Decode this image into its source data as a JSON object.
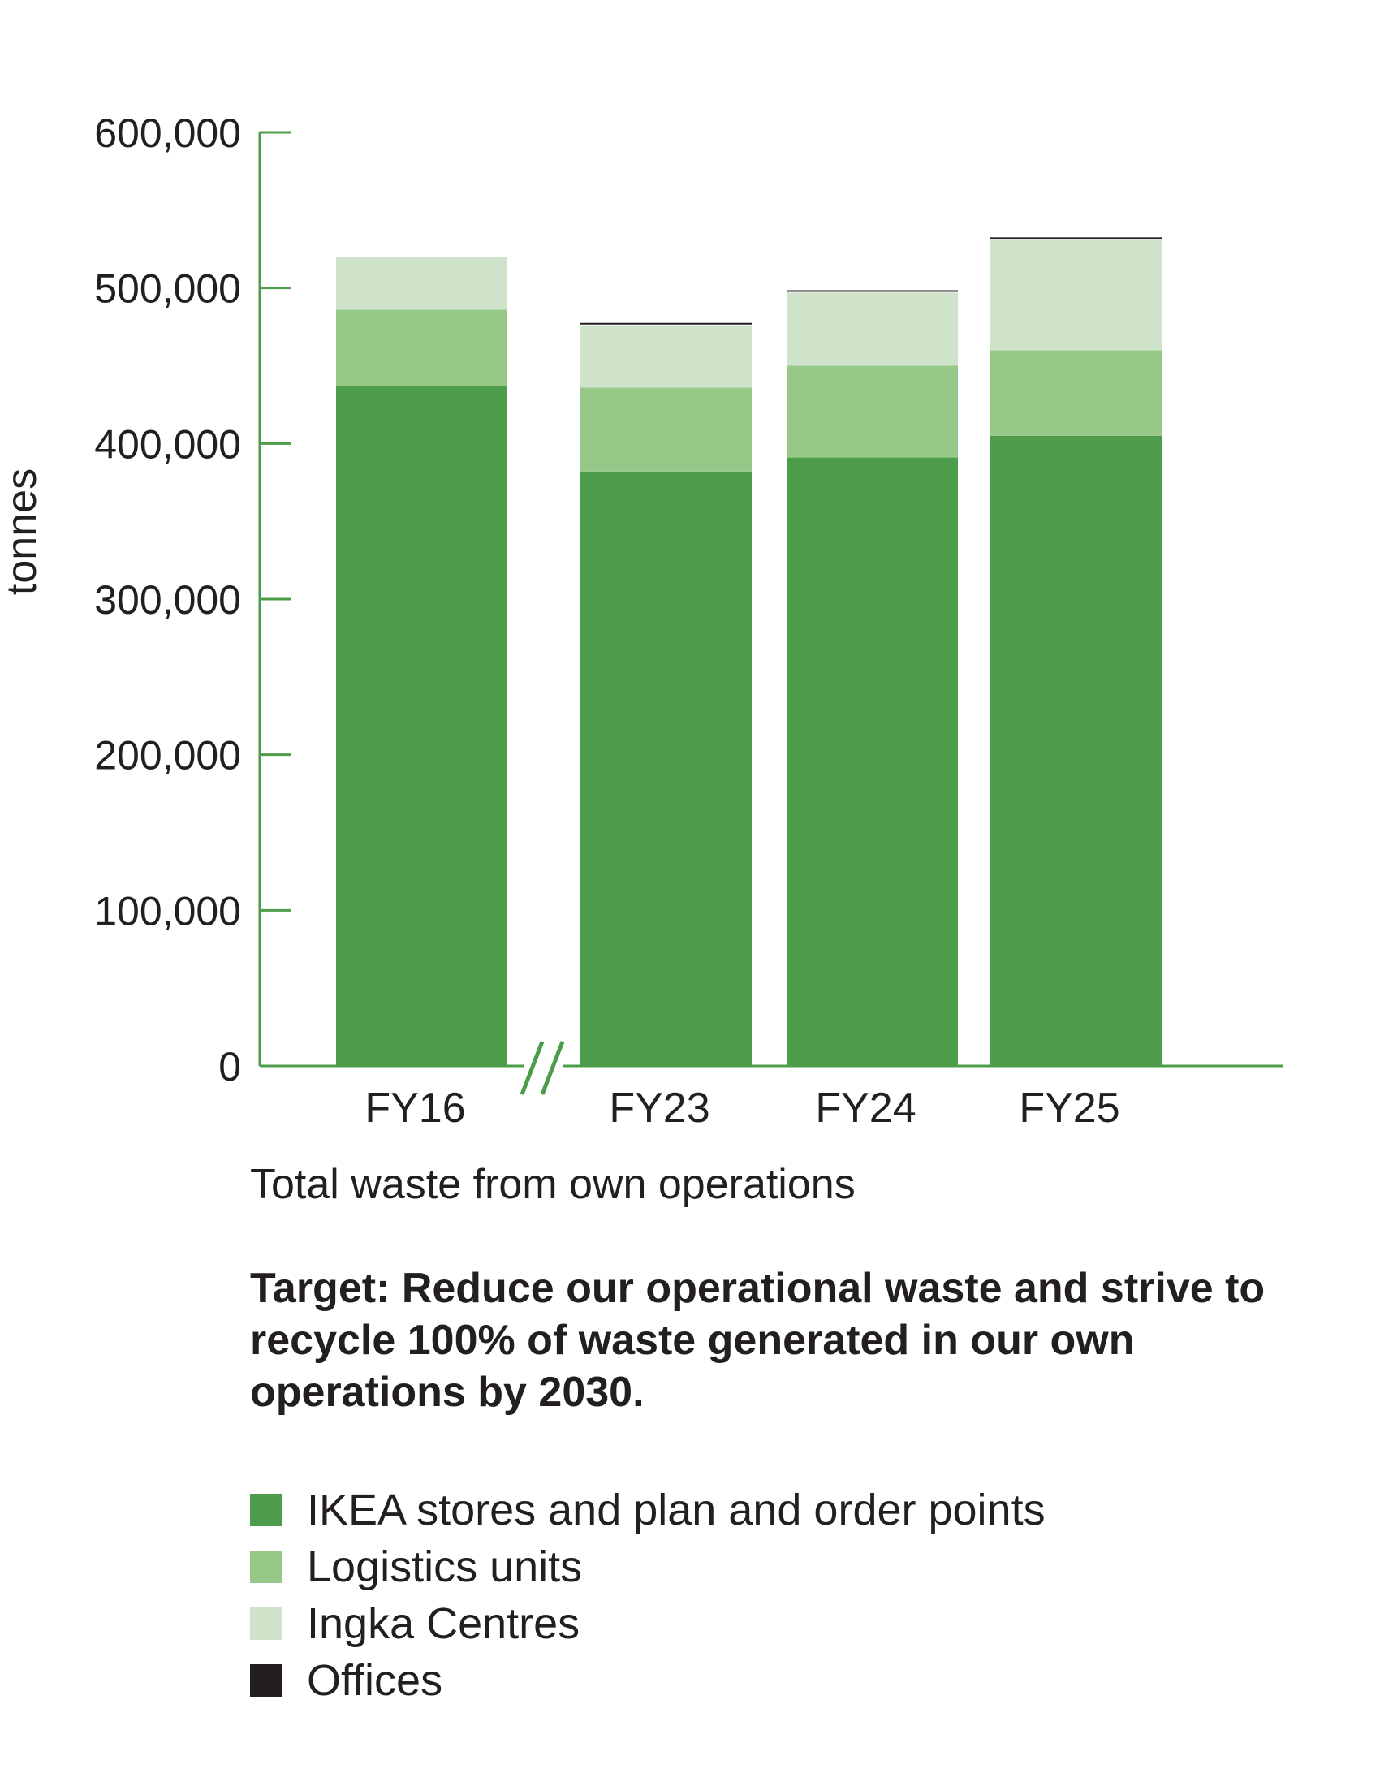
{
  "chart_data": {
    "type": "bar",
    "stacked": true,
    "categories": [
      "FY16",
      "FY23",
      "FY24",
      "FY25"
    ],
    "series": [
      {
        "name": "IKEA stores and plan and order points",
        "color": "#4c9c4a",
        "values": [
          437000,
          382000,
          391000,
          405000
        ]
      },
      {
        "name": "Logistics units",
        "color": "#98c888",
        "values": [
          49000,
          54000,
          59000,
          55000
        ]
      },
      {
        "name": "Ingka Centres",
        "color": "#cfe3cb",
        "values": [
          34000,
          40000,
          47000,
          71000
        ]
      },
      {
        "name": "Offices",
        "color": "#231f20",
        "values": [
          0,
          1000,
          1000,
          1000
        ]
      }
    ],
    "ylabel": "tonnes",
    "xlabel": "",
    "ylim": [
      0,
      600000
    ],
    "yticks": [
      0,
      100000,
      200000,
      300000,
      400000,
      500000,
      600000
    ],
    "ytick_labels": [
      "0",
      "100,000",
      "200,000",
      "300,000",
      "400,000",
      "500,000",
      "600,000"
    ],
    "axis_break_after": "FY16",
    "axis_color": "#4c9c4a",
    "grid": false,
    "legend_position": "bottom"
  },
  "caption": "Total waste from own operations",
  "target_text": "Target: Reduce our operational waste and strive to recycle 100% of waste generated in our own operations by 2030."
}
